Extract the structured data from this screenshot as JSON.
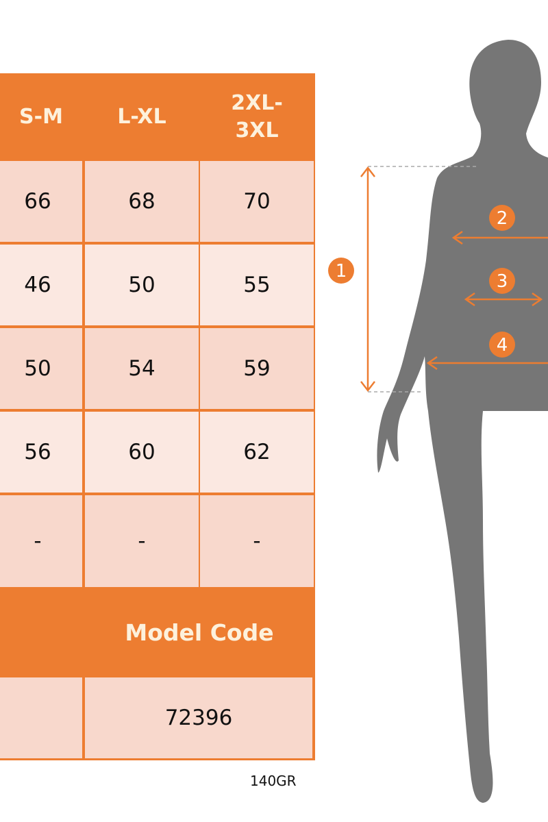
{
  "table": {
    "headers": [
      "S-M",
      "L-XL",
      "2XL-\n3XL"
    ],
    "header_lines": [
      [
        "S-M"
      ],
      [
        "L-XL"
      ],
      [
        "2XL-",
        "3XL"
      ]
    ],
    "rows": [
      [
        "66",
        "68",
        "70"
      ],
      [
        "46",
        "50",
        "55"
      ],
      [
        "50",
        "54",
        "59"
      ],
      [
        "56",
        "60",
        "62"
      ],
      [
        "-",
        "-",
        "-"
      ]
    ],
    "model_code_label": "Model Code",
    "model_code_value": "72396"
  },
  "fabric_weight": "140GR",
  "figure": {
    "markers": [
      "1",
      "2",
      "3",
      "4"
    ],
    "silhouette_color": "#767676",
    "accent_color": "#ed7d31"
  }
}
